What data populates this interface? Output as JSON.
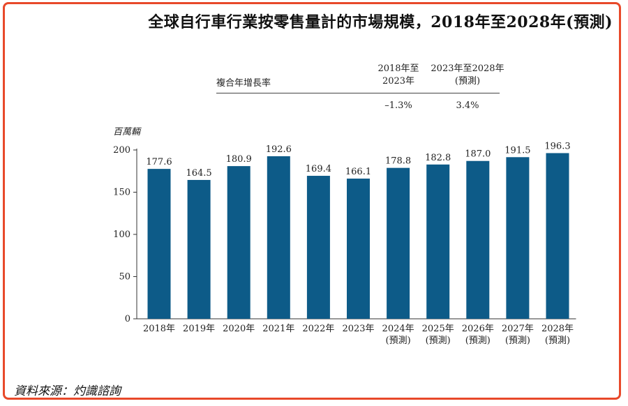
{
  "title": "全球自行車行業按零售量計的市場規模，2018年至2028年(預測)",
  "cagr": {
    "label": "複合年增長率",
    "periods": [
      {
        "line1": "2018年至",
        "line2": "2023年",
        "value": "–1.3%"
      },
      {
        "line1": "2023年至2028年",
        "line2": "(預測)",
        "value": "3.4%"
      }
    ]
  },
  "unit": "百萬輛",
  "source": "資料來源：灼識諮詢",
  "colors": {
    "bar": "#0d5b88",
    "frame": "#e8492a"
  },
  "chart_data": {
    "type": "bar",
    "title": "全球自行車行業按零售量計的市場規模，2018年至2028年(預測)",
    "ylabel": "百萬輛",
    "ylim": [
      0,
      200
    ],
    "yticks": [
      0,
      50,
      100,
      150,
      200
    ],
    "categories": [
      {
        "year": "2018年",
        "note": ""
      },
      {
        "year": "2019年",
        "note": ""
      },
      {
        "year": "2020年",
        "note": ""
      },
      {
        "year": "2021年",
        "note": ""
      },
      {
        "year": "2022年",
        "note": ""
      },
      {
        "year": "2023年",
        "note": ""
      },
      {
        "year": "2024年",
        "note": "(預測)"
      },
      {
        "year": "2025年",
        "note": "(預測)"
      },
      {
        "year": "2026年",
        "note": "(預測)"
      },
      {
        "year": "2027年",
        "note": "(預測)"
      },
      {
        "year": "2028年",
        "note": "(預測)"
      }
    ],
    "values": [
      177.6,
      164.5,
      180.9,
      192.6,
      169.4,
      166.1,
      178.8,
      182.8,
      187.0,
      191.5,
      196.3
    ],
    "value_labels": [
      "177.6",
      "164.5",
      "180.9",
      "192.6",
      "169.4",
      "166.1",
      "178.8",
      "182.8",
      "187.0",
      "191.5",
      "196.3"
    ]
  }
}
